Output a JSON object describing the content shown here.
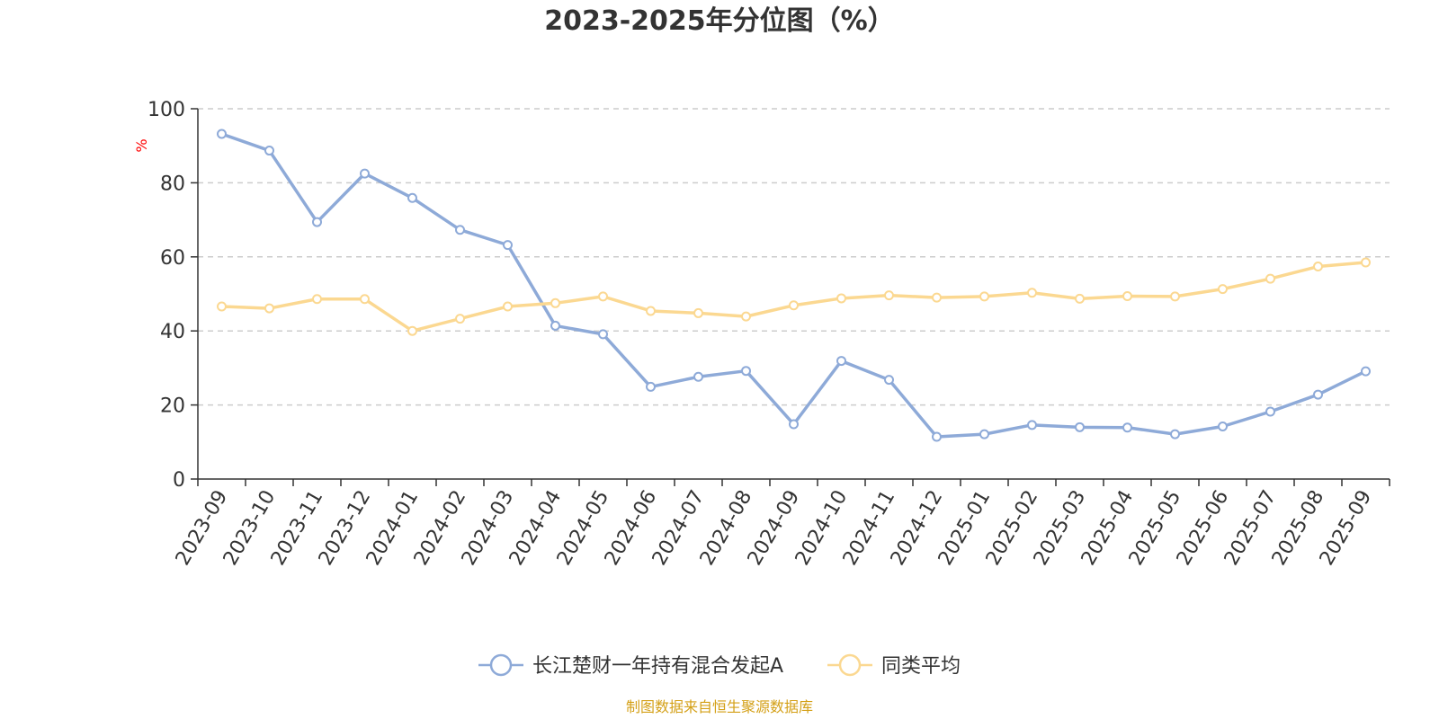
{
  "chart_data": {
    "type": "line",
    "title": "2023-2025年分位图（%）",
    "ylabel": "%",
    "ylim": [
      0,
      100
    ],
    "yticks": [
      "0",
      "20",
      "40",
      "60",
      "80",
      "100"
    ],
    "grid": true,
    "legend_position": "bottom-center",
    "categories": [
      "2023-09",
      "2023-10",
      "2023-11",
      "2023-12",
      "2024-01",
      "2024-02",
      "2024-03",
      "2024-04",
      "2024-05",
      "2024-06",
      "2024-07",
      "2024-08",
      "2024-09",
      "2024-10",
      "2024-11",
      "2024-12",
      "2025-01",
      "2025-02",
      "2025-03",
      "2025-04",
      "2025-05",
      "2025-06",
      "2025-07",
      "2025-08",
      "2025-09"
    ],
    "series": [
      {
        "name": "长江楚财一年持有混合发起A",
        "color": "#8eaad8",
        "values": [
          93.2,
          88.7,
          69.4,
          82.5,
          75.9,
          67.3,
          63.2,
          41.4,
          39.1,
          24.9,
          27.6,
          29.2,
          14.8,
          31.9,
          26.8,
          11.4,
          12.1,
          14.6,
          14.0,
          13.9,
          12.1,
          14.2,
          18.2,
          22.8,
          29.1
        ]
      },
      {
        "name": "同类平均",
        "color": "#fbd891",
        "values": [
          46.6,
          46.1,
          48.6,
          48.6,
          40.0,
          43.3,
          46.6,
          47.5,
          49.3,
          45.4,
          44.8,
          43.9,
          46.9,
          48.8,
          49.6,
          49.0,
          49.3,
          50.3,
          48.7,
          49.4,
          49.3,
          51.3,
          54.1,
          57.4,
          58.5
        ]
      }
    ],
    "source_note": "制图数据来自恒生聚源数据库",
    "source_color": "#d4a017",
    "unit_color": "#ff0000",
    "axis_color": "#333333",
    "grid_color": "#cccccc"
  }
}
